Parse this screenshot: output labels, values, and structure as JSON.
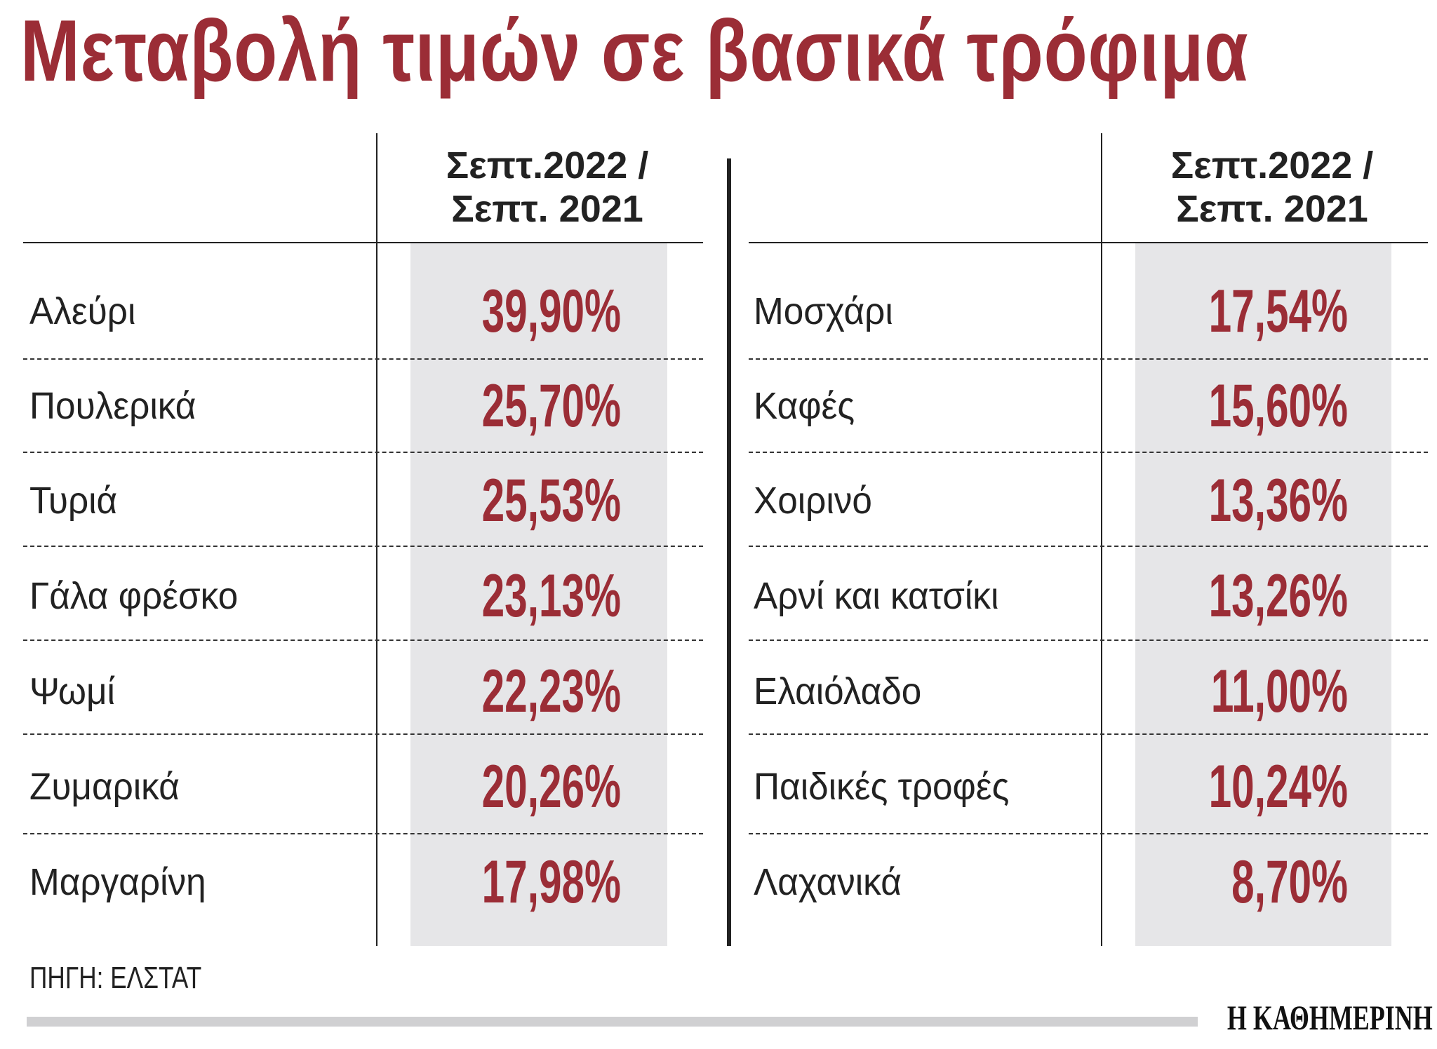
{
  "title": "Μεταβολή τιμών σε βασικά τρόφιμα",
  "column_header": [
    "Σεπτ.2022 /",
    "Σεπτ. 2021"
  ],
  "left_table": [
    {
      "item": "Αλεύρι",
      "change": "39,90%"
    },
    {
      "item": "Πουλερικά",
      "change": "25,70%"
    },
    {
      "item": "Τυριά",
      "change": "25,53%"
    },
    {
      "item": "Γάλα φρέσκο",
      "change": "23,13%"
    },
    {
      "item": "Ψωμί",
      "change": "22,23%"
    },
    {
      "item": "Ζυμαρικά",
      "change": "20,26%"
    },
    {
      "item": "Μαργαρίνη",
      "change": "17,98%"
    }
  ],
  "right_table": [
    {
      "item": "Μοσχάρι",
      "change": "17,54%"
    },
    {
      "item": "Καφές",
      "change": "15,60%"
    },
    {
      "item": "Χοιρινό",
      "change": "13,36%"
    },
    {
      "item": "Αρνί και κατσίκι",
      "change": "13,26%"
    },
    {
      "item": "Ελαιόλαδο",
      "change": "11,00%"
    },
    {
      "item": "Παιδικές τροφές",
      "change": "10,24%"
    },
    {
      "item": "Λαχανικά",
      "change": "8,70%"
    }
  ],
  "source": "ΠΗΓΗ: ΕΛΣΤΑΤ",
  "logo": "Η ΚΑΘΗΜΕΡΙΝΗ",
  "colors": {
    "accent": "#9b2d36",
    "column_bg": "#e6e6e8"
  }
}
